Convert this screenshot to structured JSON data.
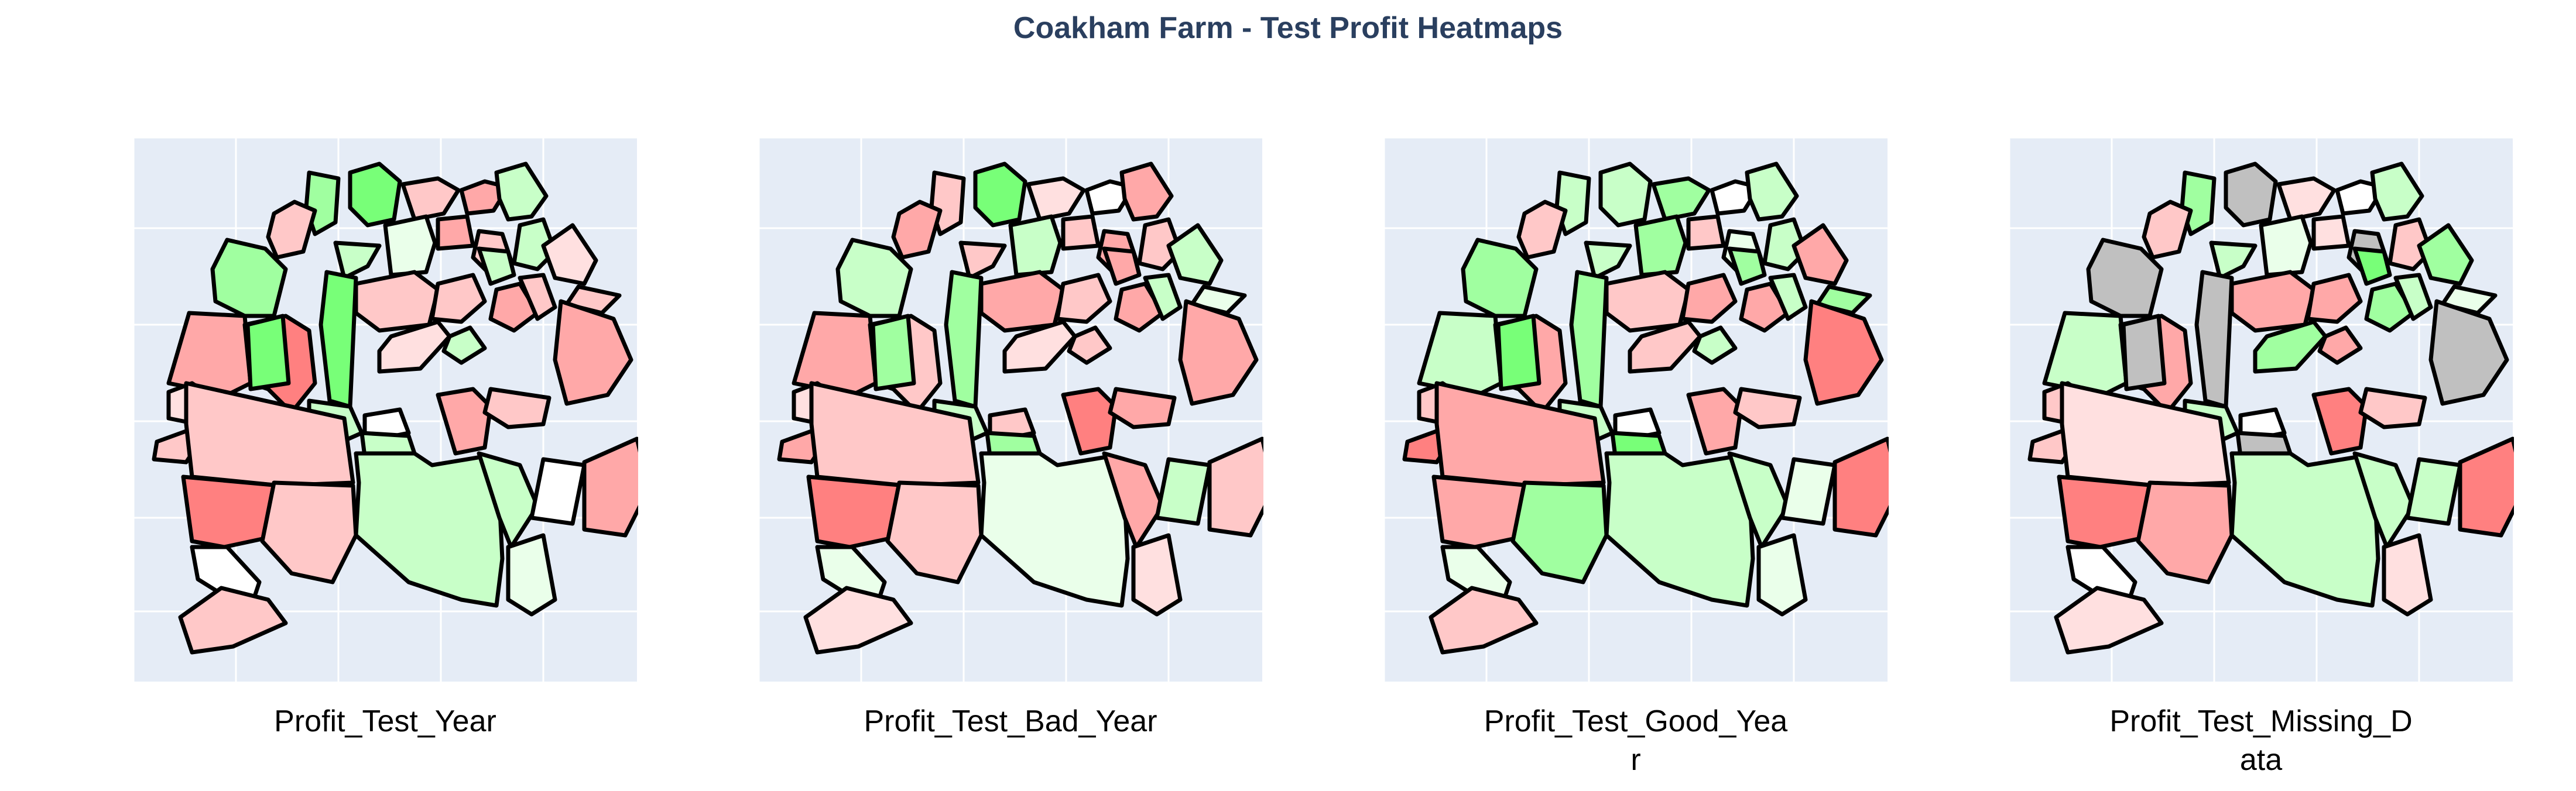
{
  "title": "Coakham Farm - Test Profit Heatmaps",
  "colors": {
    "plot_bg": "#e5ecf6",
    "grid": "#ffffff",
    "border": "#000000",
    "missing": "#c0c0c0",
    "loss_strong": "#ff8080",
    "loss_mid": "#ffa8a8",
    "loss_light": "#ffc8c8",
    "loss_faint": "#ffe0e0",
    "neutral": "#ffffff",
    "profit_faint": "#eaffea",
    "profit_light": "#c8ffc8",
    "profit_mid": "#a0ffa0",
    "profit_strong": "#78ff78"
  },
  "maps": [
    {
      "caption_lines": [
        "Profit_Test_Year"
      ],
      "fields": [
        "profit_mid",
        "profit_strong",
        "loss_light",
        "loss_mid",
        "profit_light",
        "profit_faint",
        "loss_mid",
        "loss_light",
        "profit_light",
        "loss_faint",
        "loss_light",
        "loss_light",
        "profit_mid",
        "loss_mid",
        "loss_strong",
        "profit_strong",
        "profit_light",
        "loss_light",
        "loss_light",
        "profit_light",
        "loss_mid",
        "loss_light",
        "loss_mid",
        "loss_faint",
        "profit_light",
        "profit_strong",
        "loss_faint",
        "loss_light",
        "profit_light",
        "neutral",
        "profit_light",
        "loss_mid",
        "loss_light",
        "loss_light",
        "loss_strong",
        "neutral",
        "loss_light",
        "profit_light",
        "profit_light",
        "neutral",
        "loss_mid",
        "profit_faint",
        "loss_light"
      ]
    },
    {
      "caption_lines": [
        "Profit_Test_Bad_Year"
      ],
      "fields": [
        "loss_light",
        "profit_strong",
        "loss_faint",
        "neutral",
        "loss_mid",
        "profit_light",
        "loss_light",
        "loss_mid",
        "loss_light",
        "profit_light",
        "profit_faint",
        "loss_mid",
        "profit_light",
        "loss_mid",
        "loss_light",
        "profit_mid",
        "loss_light",
        "loss_mid",
        "loss_light",
        "loss_mid",
        "loss_mid",
        "profit_light",
        "loss_mid",
        "loss_faint",
        "loss_light",
        "profit_mid",
        "loss_faint",
        "loss_mid",
        "profit_light",
        "loss_light",
        "profit_mid",
        "loss_strong",
        "loss_mid",
        "loss_light",
        "loss_strong",
        "profit_faint",
        "loss_light",
        "profit_faint",
        "loss_mid",
        "profit_light",
        "loss_light",
        "loss_faint",
        "loss_faint"
      ]
    },
    {
      "caption_lines": [
        "Profit_Test_Good_Yea",
        "r"
      ],
      "fields": [
        "profit_light",
        "profit_light",
        "profit_mid",
        "neutral",
        "profit_light",
        "profit_mid",
        "loss_light",
        "profit_faint",
        "profit_light",
        "loss_mid",
        "profit_mid",
        "loss_light",
        "profit_mid",
        "profit_light",
        "loss_mid",
        "profit_strong",
        "profit_light",
        "loss_light",
        "loss_mid",
        "profit_mid",
        "loss_mid",
        "profit_light",
        "loss_strong",
        "loss_light",
        "profit_light",
        "profit_mid",
        "loss_light",
        "loss_strong",
        "profit_light",
        "neutral",
        "profit_strong",
        "loss_mid",
        "loss_light",
        "loss_mid",
        "loss_mid",
        "profit_faint",
        "profit_mid",
        "profit_light",
        "profit_light",
        "profit_faint",
        "loss_strong",
        "profit_faint",
        "loss_light"
      ]
    },
    {
      "caption_lines": [
        "Profit_Test_Missing_D",
        "ata"
      ],
      "fields": [
        "profit_mid",
        "missing",
        "loss_faint",
        "neutral",
        "profit_light",
        "profit_faint",
        "loss_faint",
        "missing",
        "loss_light",
        "profit_mid",
        "profit_faint",
        "loss_light",
        "missing",
        "profit_light",
        "loss_mid",
        "missing",
        "profit_light",
        "loss_mid",
        "loss_mid",
        "profit_strong",
        "profit_mid",
        "profit_light",
        "missing",
        "profit_mid",
        "loss_mid",
        "missing",
        "loss_light",
        "loss_light",
        "profit_light",
        "neutral",
        "missing",
        "loss_strong",
        "loss_light",
        "loss_faint",
        "loss_strong",
        "neutral",
        "loss_mid",
        "profit_light",
        "profit_light",
        "profit_light",
        "loss_strong",
        "loss_faint",
        "loss_faint"
      ]
    }
  ]
}
